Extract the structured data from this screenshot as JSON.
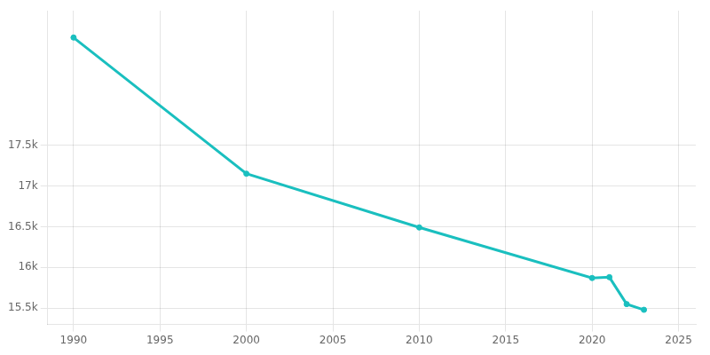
{
  "chart_data": {
    "type": "line",
    "x": [
      1990,
      2000,
      2010,
      2020,
      2021,
      2022,
      2023
    ],
    "values": [
      18820,
      17150,
      16490,
      15870,
      15880,
      15550,
      15480
    ],
    "color": "#1abfbf",
    "marker": "circle",
    "xlim": [
      1988.5,
      2026
    ],
    "ylim": [
      15300,
      19150
    ],
    "xticks": [
      1990,
      1995,
      2000,
      2005,
      2010,
      2015,
      2020,
      2025
    ],
    "yticks": [
      {
        "value": 15500,
        "label": "15.5k"
      },
      {
        "value": 16000,
        "label": "16k"
      },
      {
        "value": 16500,
        "label": "16.5k"
      },
      {
        "value": 17000,
        "label": "17k"
      },
      {
        "value": 17500,
        "label": "17.5k"
      }
    ],
    "grid": true
  }
}
